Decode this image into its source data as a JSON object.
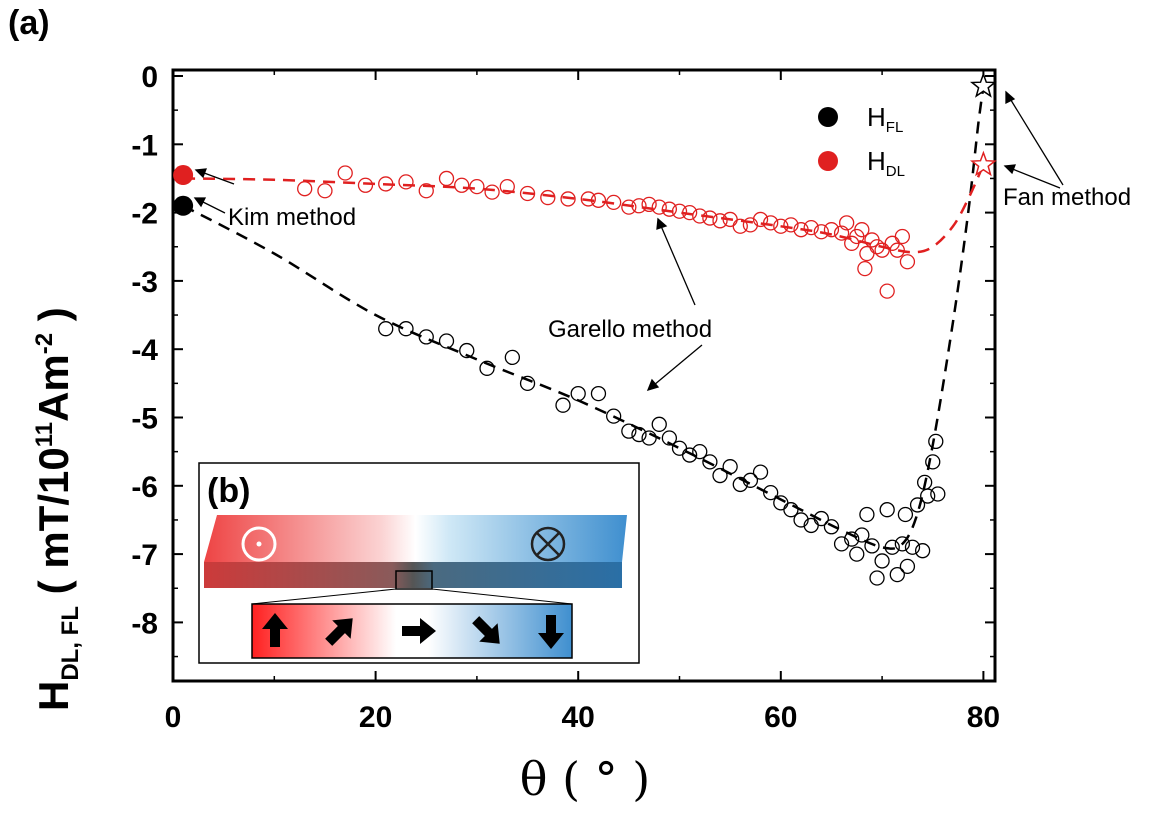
{
  "panel_label_a": "(a)",
  "panel_label_b": "(b)",
  "chart_data": {
    "type": "scatter",
    "xlim": [
      0,
      81
    ],
    "ylim": [
      -9,
      0
    ],
    "xticks": [
      0,
      20,
      40,
      60,
      80
    ],
    "xtick_labels": [
      "0",
      "20",
      "40",
      "60",
      "80"
    ],
    "yticks": [
      0,
      -1,
      -2,
      -3,
      -4,
      -5,
      -6,
      -7,
      -8
    ],
    "ytick_labels": [
      "0",
      "-1",
      "-2",
      "-3",
      "-4",
      "-5",
      "-6",
      "-7",
      "-8"
    ],
    "xlabel": {
      "main": "θ ( ° )"
    },
    "ylabel": {
      "main": "H",
      "sub": "DL, FL",
      "rest": " ( mT/10",
      "sup1": "11",
      "rest2": "Am",
      "sup2": "-2",
      "end": " )"
    },
    "grid": false,
    "legend_position": "top-right",
    "legend": [
      {
        "label": "H",
        "sub": "FL",
        "color": "#000000"
      },
      {
        "label": "H",
        "sub": "DL",
        "color": "#e02020"
      }
    ],
    "series": [
      {
        "name": "H_FL",
        "color": "#000000",
        "kim_point": {
          "x": 1,
          "y": -1.9
        },
        "fan_point": {
          "x": 80,
          "y": -0.15
        },
        "garello_points": [
          {
            "x": 21,
            "y": -3.7
          },
          {
            "x": 23,
            "y": -3.7
          },
          {
            "x": 25,
            "y": -3.82
          },
          {
            "x": 27,
            "y": -3.88
          },
          {
            "x": 29,
            "y": -4.02
          },
          {
            "x": 31,
            "y": -4.28
          },
          {
            "x": 33.5,
            "y": -4.12
          },
          {
            "x": 35,
            "y": -4.5
          },
          {
            "x": 38.5,
            "y": -4.82
          },
          {
            "x": 40,
            "y": -4.65
          },
          {
            "x": 42,
            "y": -4.65
          },
          {
            "x": 43.5,
            "y": -4.98
          },
          {
            "x": 45,
            "y": -5.2
          },
          {
            "x": 46,
            "y": -5.25
          },
          {
            "x": 47,
            "y": -5.3
          },
          {
            "x": 48,
            "y": -5.1
          },
          {
            "x": 49,
            "y": -5.3
          },
          {
            "x": 50,
            "y": -5.45
          },
          {
            "x": 51,
            "y": -5.55
          },
          {
            "x": 52,
            "y": -5.5
          },
          {
            "x": 53,
            "y": -5.65
          },
          {
            "x": 54,
            "y": -5.85
          },
          {
            "x": 55,
            "y": -5.72
          },
          {
            "x": 56,
            "y": -5.98
          },
          {
            "x": 57,
            "y": -5.92
          },
          {
            "x": 58,
            "y": -5.8
          },
          {
            "x": 59,
            "y": -6.1
          },
          {
            "x": 60,
            "y": -6.25
          },
          {
            "x": 61,
            "y": -6.35
          },
          {
            "x": 62,
            "y": -6.5
          },
          {
            "x": 63,
            "y": -6.58
          },
          {
            "x": 64,
            "y": -6.48
          },
          {
            "x": 65,
            "y": -6.6
          },
          {
            "x": 66,
            "y": -6.85
          },
          {
            "x": 67,
            "y": -6.78
          },
          {
            "x": 67.5,
            "y": -7.0
          },
          {
            "x": 68,
            "y": -6.72
          },
          {
            "x": 68.5,
            "y": -6.42
          },
          {
            "x": 69,
            "y": -6.88
          },
          {
            "x": 69.5,
            "y": -7.35
          },
          {
            "x": 70,
            "y": -7.1
          },
          {
            "x": 70.5,
            "y": -6.35
          },
          {
            "x": 71,
            "y": -6.9
          },
          {
            "x": 71.5,
            "y": -7.3
          },
          {
            "x": 72,
            "y": -6.85
          },
          {
            "x": 72.5,
            "y": -7.18
          },
          {
            "x": 73,
            "y": -6.9
          },
          {
            "x": 73.5,
            "y": -6.28
          },
          {
            "x": 74,
            "y": -6.95
          },
          {
            "x": 74.2,
            "y": -5.95
          },
          {
            "x": 74.5,
            "y": -6.15
          },
          {
            "x": 75,
            "y": -5.65
          },
          {
            "x": 75.3,
            "y": -5.35
          },
          {
            "x": 75.5,
            "y": -6.12
          },
          {
            "x": 72.3,
            "y": -6.42
          }
        ],
        "fit_curve": [
          {
            "x": 1,
            "y": -1.9
          },
          {
            "x": 10,
            "y": -2.6
          },
          {
            "x": 20,
            "y": -3.5
          },
          {
            "x": 30,
            "y": -4.15
          },
          {
            "x": 40,
            "y": -4.75
          },
          {
            "x": 50,
            "y": -5.45
          },
          {
            "x": 60,
            "y": -6.2
          },
          {
            "x": 66,
            "y": -6.65
          },
          {
            "x": 70,
            "y": -6.9
          },
          {
            "x": 72,
            "y": -6.85
          },
          {
            "x": 73.5,
            "y": -6.4
          },
          {
            "x": 75,
            "y": -5.4
          },
          {
            "x": 77,
            "y": -3.6
          },
          {
            "x": 78.5,
            "y": -2.0
          },
          {
            "x": 79.5,
            "y": -0.7
          },
          {
            "x": 80,
            "y": -0.15
          }
        ]
      },
      {
        "name": "H_DL",
        "color": "#e02020",
        "kim_point": {
          "x": 1,
          "y": -1.45
        },
        "fan_point": {
          "x": 80,
          "y": -1.3
        },
        "garello_points": [
          {
            "x": 13,
            "y": -1.65
          },
          {
            "x": 15,
            "y": -1.68
          },
          {
            "x": 17,
            "y": -1.42
          },
          {
            "x": 19,
            "y": -1.6
          },
          {
            "x": 21,
            "y": -1.58
          },
          {
            "x": 23,
            "y": -1.55
          },
          {
            "x": 25,
            "y": -1.68
          },
          {
            "x": 27,
            "y": -1.5
          },
          {
            "x": 28.5,
            "y": -1.6
          },
          {
            "x": 30,
            "y": -1.62
          },
          {
            "x": 31.5,
            "y": -1.7
          },
          {
            "x": 33,
            "y": -1.62
          },
          {
            "x": 35,
            "y": -1.72
          },
          {
            "x": 37,
            "y": -1.78
          },
          {
            "x": 39,
            "y": -1.8
          },
          {
            "x": 41,
            "y": -1.8
          },
          {
            "x": 42,
            "y": -1.82
          },
          {
            "x": 43.5,
            "y": -1.85
          },
          {
            "x": 45,
            "y": -1.92
          },
          {
            "x": 46,
            "y": -1.9
          },
          {
            "x": 47,
            "y": -1.88
          },
          {
            "x": 48,
            "y": -1.92
          },
          {
            "x": 49,
            "y": -1.95
          },
          {
            "x": 50,
            "y": -1.98
          },
          {
            "x": 51,
            "y": -2.0
          },
          {
            "x": 52,
            "y": -2.05
          },
          {
            "x": 53,
            "y": -2.08
          },
          {
            "x": 54,
            "y": -2.12
          },
          {
            "x": 55,
            "y": -2.1
          },
          {
            "x": 56,
            "y": -2.2
          },
          {
            "x": 57,
            "y": -2.18
          },
          {
            "x": 58,
            "y": -2.1
          },
          {
            "x": 59,
            "y": -2.15
          },
          {
            "x": 60,
            "y": -2.2
          },
          {
            "x": 61,
            "y": -2.18
          },
          {
            "x": 62,
            "y": -2.25
          },
          {
            "x": 63,
            "y": -2.22
          },
          {
            "x": 64,
            "y": -2.28
          },
          {
            "x": 65,
            "y": -2.25
          },
          {
            "x": 66,
            "y": -2.3
          },
          {
            "x": 66.5,
            "y": -2.15
          },
          {
            "x": 67,
            "y": -2.45
          },
          {
            "x": 67.5,
            "y": -2.35
          },
          {
            "x": 68,
            "y": -2.25
          },
          {
            "x": 68.5,
            "y": -2.6
          },
          {
            "x": 69,
            "y": -2.4
          },
          {
            "x": 69.5,
            "y": -2.5
          },
          {
            "x": 70,
            "y": -2.55
          },
          {
            "x": 70.5,
            "y": -3.15
          },
          {
            "x": 71,
            "y": -2.45
          },
          {
            "x": 71.5,
            "y": -2.55
          },
          {
            "x": 72,
            "y": -2.35
          },
          {
            "x": 72.5,
            "y": -2.72
          },
          {
            "x": 68.3,
            "y": -2.82
          }
        ],
        "fit_curve": [
          {
            "x": 1,
            "y": -1.5
          },
          {
            "x": 10,
            "y": -1.52
          },
          {
            "x": 20,
            "y": -1.58
          },
          {
            "x": 30,
            "y": -1.65
          },
          {
            "x": 40,
            "y": -1.8
          },
          {
            "x": 50,
            "y": -2.0
          },
          {
            "x": 60,
            "y": -2.2
          },
          {
            "x": 65,
            "y": -2.32
          },
          {
            "x": 70,
            "y": -2.5
          },
          {
            "x": 73,
            "y": -2.58
          },
          {
            "x": 75,
            "y": -2.5
          },
          {
            "x": 77,
            "y": -2.2
          },
          {
            "x": 78.5,
            "y": -1.8
          },
          {
            "x": 80,
            "y": -1.3
          }
        ]
      }
    ],
    "annotations": [
      {
        "text": "Kim method"
      },
      {
        "text": "Garello method"
      },
      {
        "text": "Fan method"
      }
    ]
  }
}
